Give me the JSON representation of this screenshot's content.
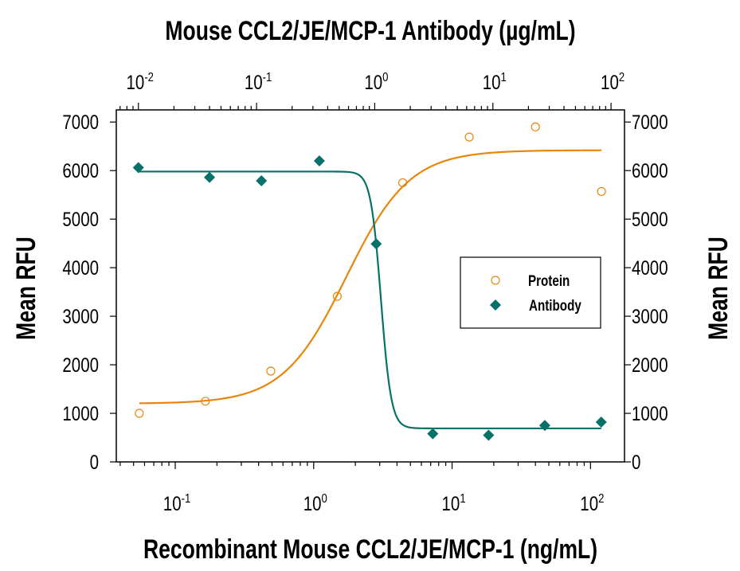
{
  "chart_data": {
    "type": "scatter",
    "title_top_axis": "Mouse CCL2/JE/MCP-1 Antibody (µg/mL)",
    "xlabel": "Recombinant Mouse CCL2/JE/MCP-1 (ng/mL)",
    "ylabel_left": "Mean RFU",
    "ylabel_right": "Mean RFU",
    "x_scale": "log",
    "xlim_bottom": [
      0.0375,
      176
    ],
    "xlim_top": [
      0.0065,
      130
    ],
    "ylim": [
      0,
      7250
    ],
    "grid": false,
    "x_ticks_bottom": [
      {
        "base": "10",
        "exp": "-1",
        "value": 0.1
      },
      {
        "base": "10",
        "exp": "0",
        "value": 1
      },
      {
        "base": "10",
        "exp": "1",
        "value": 10
      },
      {
        "base": "10",
        "exp": "2",
        "value": 100
      }
    ],
    "x_ticks_top": [
      {
        "base": "10",
        "exp": "-2",
        "value": 0.01
      },
      {
        "base": "10",
        "exp": "-1",
        "value": 0.1
      },
      {
        "base": "10",
        "exp": "0",
        "value": 1
      },
      {
        "base": "10",
        "exp": "1",
        "value": 10
      },
      {
        "base": "10",
        "exp": "2",
        "value": 100
      }
    ],
    "y_ticks": [
      "0",
      "1000",
      "2000",
      "3000",
      "4000",
      "5000",
      "6000",
      "7000"
    ],
    "legend_position": "center-right",
    "series": [
      {
        "name": "Protein",
        "axis": "bottom",
        "marker": "open-circle",
        "color": "#E8860C",
        "x": [
          0.055,
          0.165,
          0.49,
          1.48,
          4.4,
          13.3,
          40,
          120
        ],
        "y": [
          1000,
          1250,
          1870,
          3410,
          5750,
          6690,
          6900,
          5570
        ],
        "fit_curve": {
          "model": "4PL",
          "bottom": 1200,
          "top": 6420,
          "ec50": 1.72,
          "hill": 1.9
        }
      },
      {
        "name": "Antibody",
        "axis": "top",
        "marker": "filled-diamond",
        "color": "#07716A",
        "x": [
          0.01,
          0.04,
          0.11,
          0.34,
          1.03,
          3.1,
          9.2,
          27.5,
          82.6
        ],
        "y": [
          6060,
          5860,
          5790,
          6200,
          4490,
          580,
          550,
          750,
          820
        ],
        "fit_curve": {
          "model": "4PL",
          "bottom": 690,
          "top": 5980,
          "ec50": 1.13,
          "hill": -10
        }
      }
    ]
  }
}
